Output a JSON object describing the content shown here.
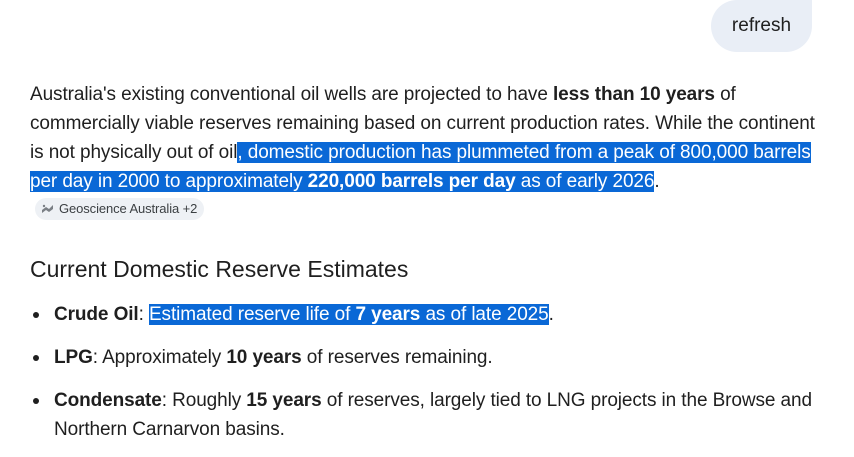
{
  "header": {
    "refresh_label": "refresh"
  },
  "intro": {
    "t1": "Australia's existing conventional oil wells are projected to have ",
    "b1": "less than 10 years",
    "t2": " of commercially viable reserves remaining based on current production rates. While the continent is not physically out of oil",
    "h1": ", domestic production has plummeted from a peak of 800,000 barrels per day in 2000 to approximately ",
    "hb1": "220,000 barrels per day",
    "h2": " as of early 2026",
    "t3": ".",
    "source_label": "Geoscience Australia +2",
    "source_icon": "geoscience-australia-logo-icon"
  },
  "section": {
    "heading": "Current Domestic Reserve Estimates"
  },
  "reserves": [
    {
      "name": "Crude Oil",
      "sep": ": ",
      "h1": "Estimated reserve life of ",
      "hb": "7 years",
      "h2": " as of late 2025",
      "end": "."
    },
    {
      "name": "LPG",
      "pre": ": Approximately ",
      "b": "10 years",
      "post": " of reserves remaining."
    },
    {
      "name": "Condensate",
      "pre": ": Roughly ",
      "b": "15 years",
      "post": " of reserves, largely tied to LNG projects in the Browse and Northern Carnarvon basins."
    }
  ],
  "colors": {
    "selection_highlight": "#0a68d6",
    "chip_background": "#e9eef6",
    "text": "#1f1f1f"
  }
}
